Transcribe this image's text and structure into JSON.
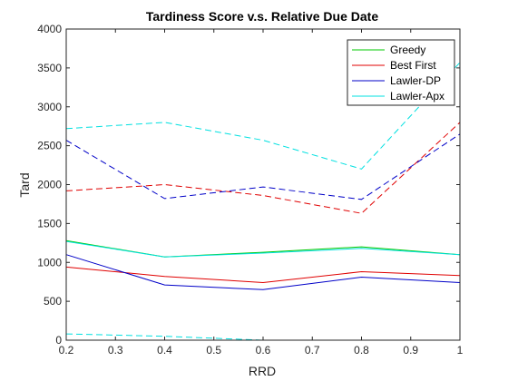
{
  "chart_data": {
    "type": "line",
    "title": "Tardiness Score v.s. Relative Due Date",
    "xlabel": "RRD",
    "ylabel": "Tard",
    "xlim": [
      0.2,
      1
    ],
    "ylim": [
      0,
      4000
    ],
    "xticks": [
      0.2,
      0.3,
      0.4,
      0.5,
      0.6,
      0.7,
      0.8,
      0.9,
      1
    ],
    "xtick_labels": [
      "0.2",
      "0.3",
      "0.4",
      "0.5",
      "0.6",
      "0.7",
      "0.8",
      "0.9",
      "1"
    ],
    "yticks": [
      0,
      500,
      1000,
      1500,
      2000,
      2500,
      3000,
      3500,
      4000
    ],
    "ytick_labels": [
      "0",
      "500",
      "1000",
      "1500",
      "2000",
      "2500",
      "3000",
      "3500",
      "4000"
    ],
    "grid": false,
    "legend_position": "top-right",
    "x": [
      0.2,
      0.4,
      0.6,
      0.8,
      1.0
    ],
    "series": [
      {
        "name": "Greedy",
        "color": "#00c800",
        "style": "solid",
        "in_legend": true,
        "values": [
          1280,
          1070,
          1130,
          1200,
          1100
        ]
      },
      {
        "name": "Best First",
        "color": "#e00000",
        "style": "solid",
        "in_legend": true,
        "values": [
          940,
          820,
          740,
          880,
          830
        ]
      },
      {
        "name": "Lawler-DP",
        "color": "#0000c8",
        "style": "solid",
        "in_legend": true,
        "values": [
          1100,
          710,
          650,
          810,
          740
        ]
      },
      {
        "name": "Lawler-Apx",
        "color": "#00e0e0",
        "style": "solid",
        "in_legend": true,
        "values": [
          1270,
          1070,
          1120,
          1180,
          1100
        ]
      },
      {
        "name": "",
        "color": "#e00000",
        "style": "dashed",
        "in_legend": false,
        "values": [
          1920,
          2000,
          1860,
          1630,
          2800
        ]
      },
      {
        "name": "",
        "color": "#0000c8",
        "style": "dashed",
        "in_legend": false,
        "values": [
          2570,
          1820,
          1970,
          1810,
          2650
        ]
      },
      {
        "name": "",
        "color": "#00e0e0",
        "style": "dashed",
        "in_legend": false,
        "values": [
          2720,
          2800,
          2570,
          2200,
          3570
        ]
      },
      {
        "name": "",
        "color": "#00e0e0",
        "style": "dashed",
        "in_legend": false,
        "values": [
          80,
          50,
          0,
          0,
          0
        ]
      }
    ]
  }
}
